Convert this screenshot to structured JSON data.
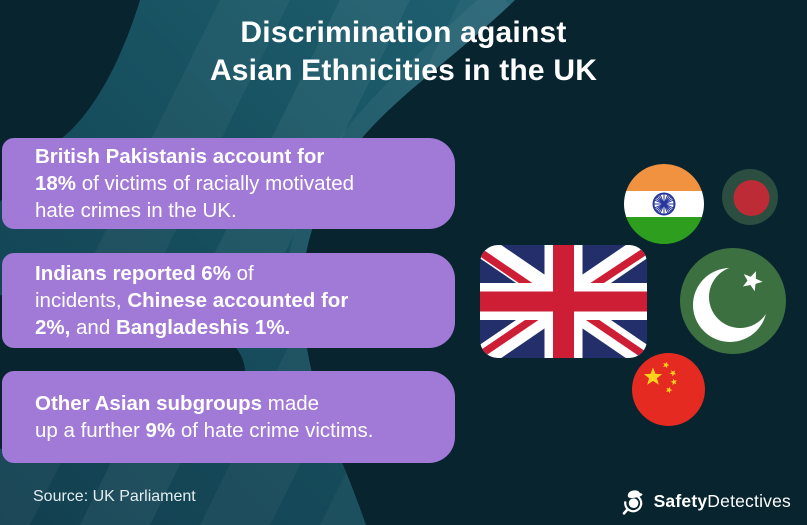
{
  "title": {
    "line1": "Discrimination against",
    "line2": "Asian Ethnicities in the UK"
  },
  "cards": [
    {
      "id": "british-pakistanis",
      "segments": [
        {
          "text": "British Pakistanis account for",
          "bold": true
        },
        {
          "br": true
        },
        {
          "text": "18%",
          "bold": true
        },
        {
          "text": " of victims of racially motivated",
          "bold": false
        },
        {
          "br": true
        },
        {
          "text": "hate crimes in the UK.",
          "bold": false
        }
      ]
    },
    {
      "id": "indians-chinese-bangladeshis",
      "segments": [
        {
          "text": "Indians reported 6%",
          "bold": true
        },
        {
          "text": " of",
          "bold": false
        },
        {
          "br": true
        },
        {
          "text": "incidents, ",
          "bold": false
        },
        {
          "text": "Chinese accounted for",
          "bold": true
        },
        {
          "br": true
        },
        {
          "text": "2%,",
          "bold": true
        },
        {
          "text": " and ",
          "bold": false
        },
        {
          "text": "Bangladeshis 1%.",
          "bold": true
        }
      ]
    },
    {
      "id": "other-asian-subgroups",
      "segments": [
        {
          "text": "Other Asian subgroups",
          "bold": true
        },
        {
          "text": " made",
          "bold": false
        },
        {
          "br": true
        },
        {
          "text": "up a further ",
          "bold": false
        },
        {
          "text": "9%",
          "bold": true
        },
        {
          "text": " of hate crime victims.",
          "bold": false
        }
      ]
    }
  ],
  "flags": [
    {
      "name": "india"
    },
    {
      "name": "bangladesh"
    },
    {
      "name": "united-kingdom"
    },
    {
      "name": "pakistan"
    },
    {
      "name": "china"
    }
  ],
  "source": {
    "label": "Source: UK Parliament"
  },
  "brand": {
    "name_bold": "Safety",
    "name_regular": "Detectives"
  },
  "colors": {
    "background_dark": "#08242f",
    "swoosh_teal": "#17505f",
    "card_purple": "#a179d7",
    "text_white": "#ffffff",
    "uk_navy": "#232f6a",
    "uk_red": "#ce1e35",
    "india_saffron": "#f0923f",
    "india_green": "#2e9e1e",
    "india_chakra": "#28379b",
    "bangladesh_green": "#2b4e40",
    "bangladesh_red": "#bd2c36",
    "pakistan_green": "#3c7040",
    "china_red": "#e42a21",
    "china_yellow": "#ffd21e"
  }
}
